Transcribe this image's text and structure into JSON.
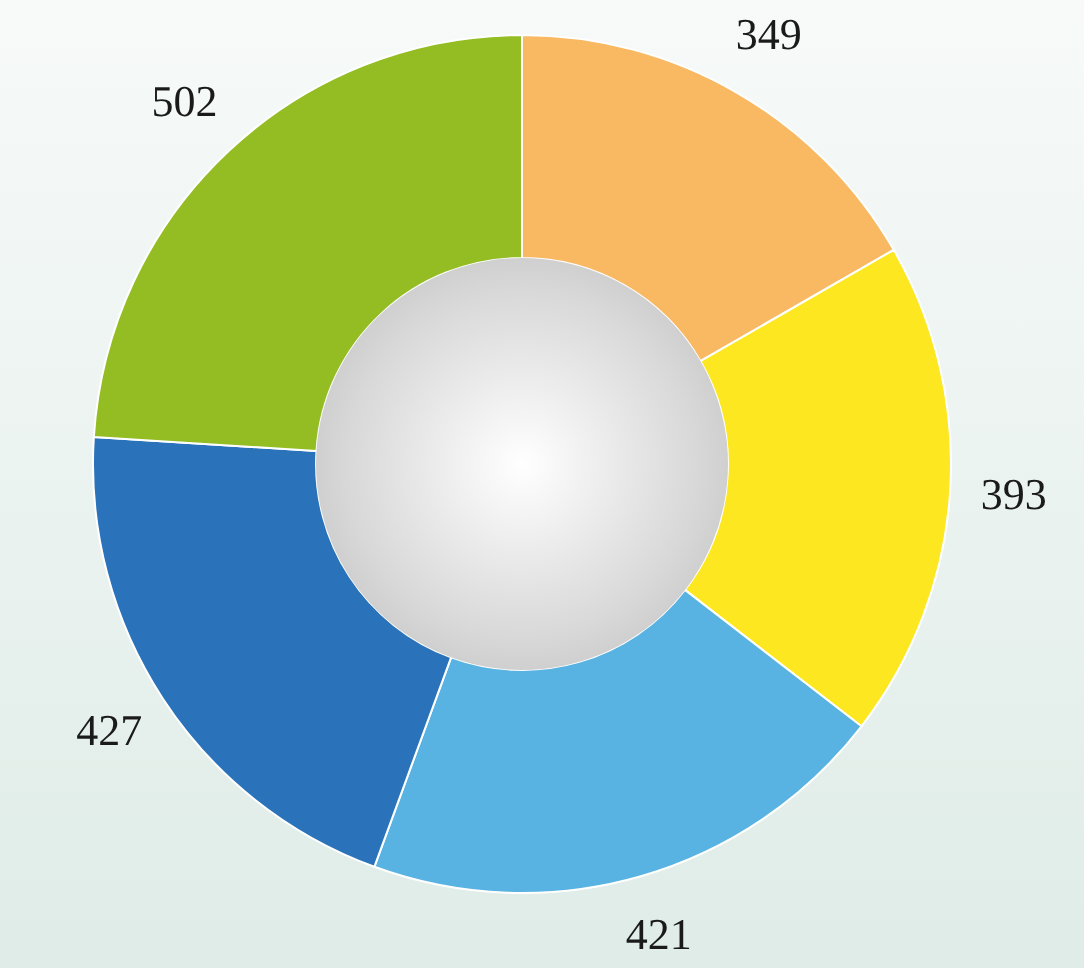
{
  "chart_data": {
    "type": "donut",
    "categories": [
      null,
      null,
      null,
      null,
      null
    ],
    "values": [
      349,
      393,
      421,
      427,
      502
    ],
    "colors": [
      "#f9b862",
      "#fde720",
      "#58b3e2",
      "#2a72ba",
      "#93bd22"
    ],
    "data_labels": true,
    "legend": false
  }
}
